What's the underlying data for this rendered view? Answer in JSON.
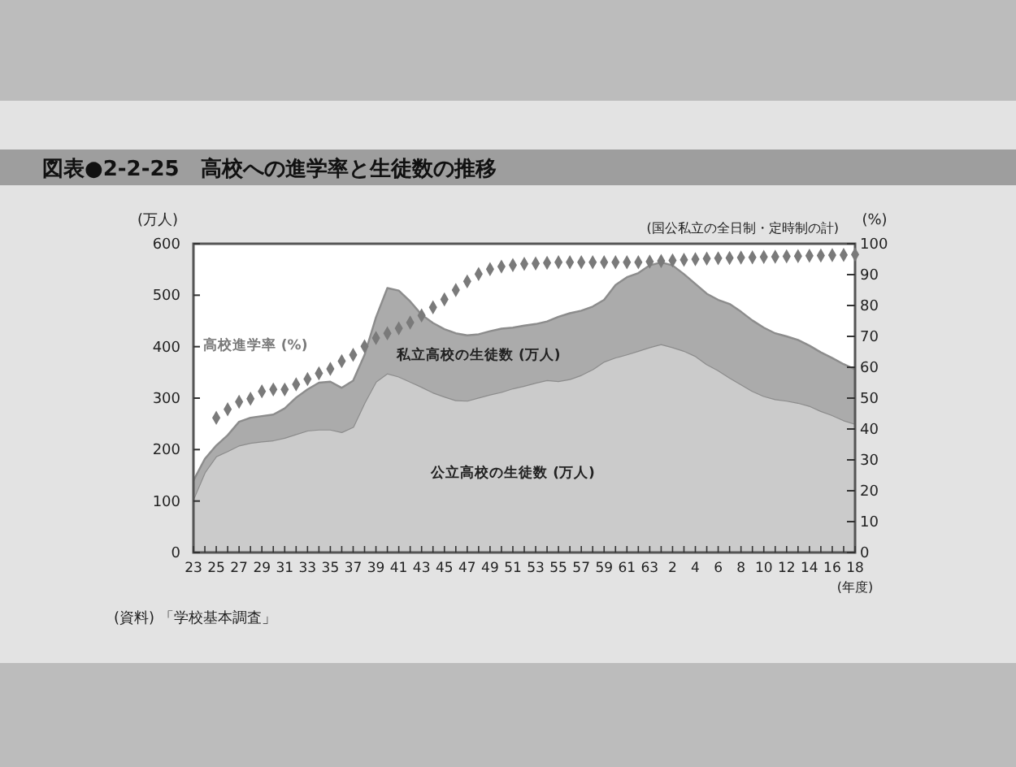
{
  "chart_data": {
    "type": "area",
    "title": "図表●2-2-25　高校への進学率と生徒数の推移",
    "ylabel": "(万人)",
    "y2label": "(%)",
    "xlabel": "(年度)",
    "annotations": [
      "(国公私立の全日制・定時制の計)",
      "(資料) 「学校基本調査」"
    ],
    "categories": [
      "23",
      null,
      "25",
      null,
      "27",
      null,
      "29",
      null,
      "31",
      null,
      "33",
      null,
      "35",
      null,
      "37",
      null,
      "39",
      null,
      "41",
      null,
      "43",
      null,
      "45",
      null,
      "47",
      null,
      "49",
      null,
      "51",
      null,
      "53",
      null,
      "55",
      null,
      "57",
      null,
      "59",
      null,
      "61",
      null,
      "63",
      null,
      "2",
      null,
      "4",
      null,
      "6",
      null,
      "8",
      null,
      "10",
      null,
      "12",
      null,
      "14",
      null,
      "16",
      null,
      "18"
    ],
    "stacked": true,
    "series": [
      {
        "name": "公立高校の生徒数 (万人)",
        "color": "#cbcbcb",
        "values": [
          104,
          156,
          187,
          197,
          208,
          213,
          216,
          218,
          223,
          230,
          237,
          239,
          239,
          234,
          244,
          291,
          332,
          348,
          342,
          332,
          322,
          311,
          303,
          296,
          295,
          301,
          307,
          312,
          319,
          324,
          330,
          335,
          333,
          337,
          345,
          356,
          371,
          379,
          385,
          392,
          399,
          405,
          399,
          392,
          382,
          366,
          354,
          340,
          327,
          314,
          304,
          298,
          295,
          291,
          285,
          275,
          267,
          257,
          250
        ]
      },
      {
        "name": "私立高校の生徒数 (万人)",
        "color": "#ababab",
        "values": [
          36,
          26,
          21,
          31,
          46,
          49,
          49,
          50,
          57,
          71,
          80,
          91,
          93,
          86,
          90,
          93,
          125,
          166,
          167,
          156,
          140,
          135,
          131,
          130,
          127,
          123,
          123,
          123,
          118,
          117,
          114,
          114,
          125,
          128,
          125,
          122,
          120,
          141,
          150,
          151,
          159,
          159,
          159,
          149,
          140,
          137,
          137,
          143,
          141,
          137,
          133,
          128,
          125,
          122,
          117,
          114,
          111,
          109,
          106
        ]
      },
      {
        "name": "高校進学率 (%)",
        "type": "scatter",
        "axis": "y2",
        "color": "#7a7a7a",
        "marker": "diamond",
        "values": [
          null,
          null,
          43.6,
          46.4,
          48.8,
          49.8,
          52.2,
          52.8,
          52.8,
          54.5,
          56.2,
          58,
          59.5,
          62,
          64,
          66.8,
          69.5,
          71,
          72.6,
          74.5,
          76.8,
          79.4,
          82,
          85,
          87.8,
          90.2,
          91.8,
          92.6,
          93.1,
          93.5,
          93.6,
          93.8,
          94,
          94,
          94,
          94,
          94,
          94,
          94,
          94,
          94.2,
          94.4,
          94.6,
          94.8,
          95,
          95.2,
          95.3,
          95.4,
          95.5,
          95.6,
          95.7,
          95.8,
          95.9,
          96,
          96.1,
          96.2,
          96.3,
          96.4,
          96.5
        ]
      }
    ],
    "ylim": [
      0,
      600
    ],
    "yticks": [
      0,
      100,
      200,
      300,
      400,
      500,
      600
    ],
    "y2lim": [
      0,
      100
    ],
    "y2ticks": [
      0,
      10,
      20,
      30,
      40,
      50,
      60,
      70,
      80,
      90,
      100
    ]
  }
}
